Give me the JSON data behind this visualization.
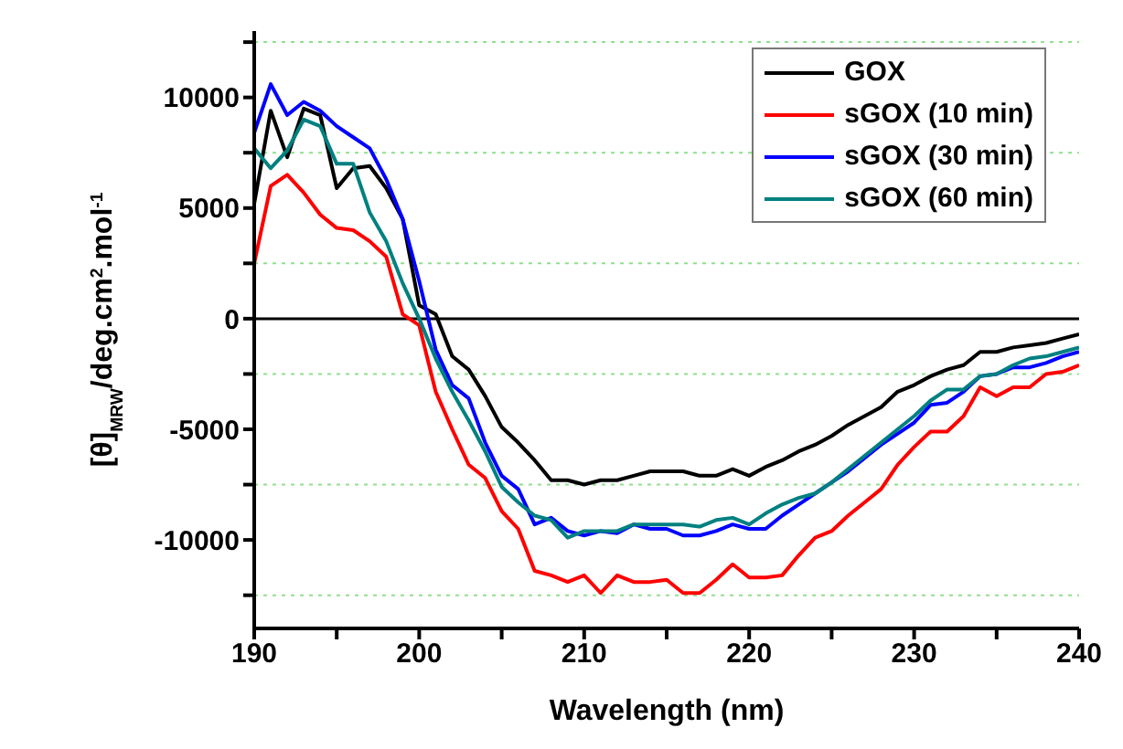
{
  "chart_data": {
    "type": "line",
    "xlabel": "Wavelength (nm)",
    "ylabel": "[θ]$_{MRW}$/deg.cm$^{2}$.mol$^{-1}$",
    "x": [
      190,
      191,
      192,
      193,
      194,
      195,
      196,
      197,
      198,
      199,
      200,
      201,
      202,
      203,
      204,
      205,
      206,
      207,
      208,
      209,
      210,
      211,
      212,
      213,
      214,
      215,
      216,
      217,
      218,
      219,
      220,
      221,
      222,
      223,
      224,
      225,
      226,
      227,
      228,
      229,
      230,
      231,
      232,
      233,
      234,
      235,
      236,
      237,
      238,
      239,
      240
    ],
    "series": [
      {
        "name": "GOX",
        "color": "#000000",
        "values": [
          5200,
          9400,
          7300,
          9500,
          9200,
          5900,
          6800,
          6900,
          5900,
          4500,
          600,
          200,
          -1700,
          -2300,
          -3500,
          -4900,
          -5600,
          -6400,
          -7300,
          -7300,
          -7500,
          -7300,
          -7300,
          -7100,
          -6900,
          -6900,
          -6900,
          -7100,
          -7100,
          -6800,
          -7100,
          -6700,
          -6400,
          -6000,
          -5700,
          -5300,
          -4800,
          -4400,
          -4000,
          -3300,
          -3000,
          -2600,
          -2300,
          -2100,
          -1500,
          -1500,
          -1300,
          -1200,
          -1100,
          -900,
          -700
        ]
      },
      {
        "name": "sGOX (10 min)",
        "color": "#ff0000",
        "values": [
          2500,
          6000,
          6500,
          5700,
          4700,
          4100,
          4000,
          3500,
          2800,
          200,
          -300,
          -3300,
          -5000,
          -6600,
          -7200,
          -8700,
          -9500,
          -11400,
          -11600,
          -11900,
          -11600,
          -12400,
          -11600,
          -11900,
          -11900,
          -11800,
          -12400,
          -12400,
          -11800,
          -11100,
          -11700,
          -11700,
          -11600,
          -10700,
          -9900,
          -9600,
          -8900,
          -8300,
          -7700,
          -6600,
          -5800,
          -5100,
          -5100,
          -4400,
          -3100,
          -3500,
          -3100,
          -3100,
          -2500,
          -2400,
          -2100
        ]
      },
      {
        "name": "sGOX (30 min)",
        "color": "#0000ff",
        "values": [
          8400,
          10600,
          9200,
          9800,
          9400,
          8700,
          8200,
          7700,
          6300,
          4500,
          1700,
          -1400,
          -3000,
          -3600,
          -5600,
          -7100,
          -7700,
          -9300,
          -9000,
          -9600,
          -9800,
          -9600,
          -9700,
          -9300,
          -9500,
          -9500,
          -9800,
          -9800,
          -9600,
          -9300,
          -9500,
          -9500,
          -8900,
          -8400,
          -7900,
          -7400,
          -6900,
          -6300,
          -5700,
          -5200,
          -4700,
          -3900,
          -3800,
          -3300,
          -2600,
          -2500,
          -2200,
          -2200,
          -2000,
          -1700,
          -1500
        ]
      },
      {
        "name": "sGOX (60 min)",
        "color": "#008080",
        "values": [
          7700,
          6800,
          7600,
          9000,
          8700,
          7000,
          7000,
          4800,
          3500,
          1600,
          0,
          -1800,
          -3300,
          -4600,
          -6000,
          -7600,
          -8300,
          -8900,
          -9100,
          -9900,
          -9600,
          -9600,
          -9600,
          -9300,
          -9300,
          -9300,
          -9300,
          -9400,
          -9100,
          -9000,
          -9300,
          -8800,
          -8400,
          -8100,
          -7900,
          -7400,
          -6800,
          -6200,
          -5600,
          -5000,
          -4400,
          -3700,
          -3200,
          -3200,
          -2600,
          -2500,
          -2100,
          -1800,
          -1700,
          -1500,
          -1300
        ]
      }
    ],
    "xlim": [
      190,
      240
    ],
    "xticks": [
      190,
      {
        "value": 195,
        "label": null
      },
      200,
      {
        "value": 205,
        "label": null
      },
      210,
      {
        "value": 215,
        "label": null
      },
      220,
      {
        "value": 225,
        "label": null
      },
      230,
      {
        "value": 235,
        "label": null
      },
      240
    ],
    "ylim": [
      -14000,
      13000
    ],
    "yticks": [
      {
        "value": -12500,
        "label": null
      },
      -10000,
      {
        "value": -7500,
        "label": null
      },
      -5000,
      {
        "value": -2500,
        "label": null
      },
      0,
      {
        "value": 2500,
        "label": null
      },
      5000,
      {
        "value": 7500,
        "label": null
      },
      10000,
      {
        "value": 12500,
        "label": null
      }
    ],
    "ref_lines": [
      {
        "axis": "y",
        "value": 0,
        "color": "#000000",
        "line_style": "solid"
      }
    ],
    "grid": "y",
    "legend": "top right",
    "marker": "none",
    "line_style": "solid"
  }
}
